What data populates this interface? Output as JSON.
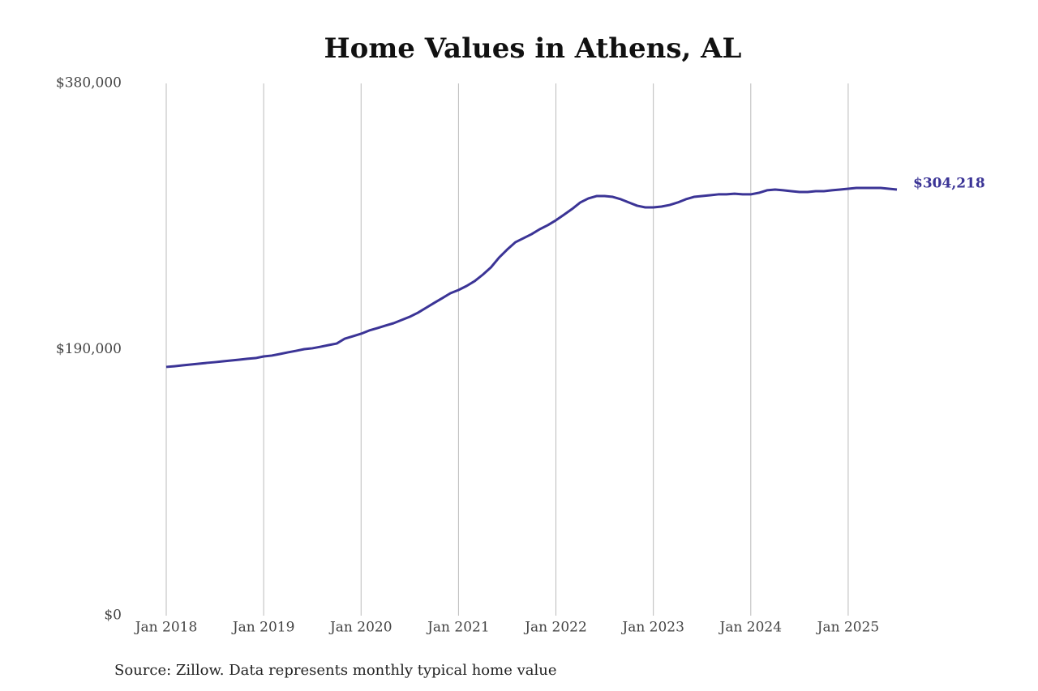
{
  "chart_data": {
    "type": "line",
    "title": "Home Values in Athens, AL",
    "source": "Source: Zillow. Data represents monthly typical home value",
    "x": [
      "2018-01",
      "2018-02",
      "2018-03",
      "2018-04",
      "2018-05",
      "2018-06",
      "2018-07",
      "2018-08",
      "2018-09",
      "2018-10",
      "2018-11",
      "2018-12",
      "2019-01",
      "2019-02",
      "2019-03",
      "2019-04",
      "2019-05",
      "2019-06",
      "2019-07",
      "2019-08",
      "2019-09",
      "2019-10",
      "2019-11",
      "2019-12",
      "2020-01",
      "2020-02",
      "2020-03",
      "2020-04",
      "2020-05",
      "2020-06",
      "2020-07",
      "2020-08",
      "2020-09",
      "2020-10",
      "2020-11",
      "2020-12",
      "2021-01",
      "2021-02",
      "2021-03",
      "2021-04",
      "2021-05",
      "2021-06",
      "2021-07",
      "2021-08",
      "2021-09",
      "2021-10",
      "2021-11",
      "2021-12",
      "2022-01",
      "2022-02",
      "2022-03",
      "2022-04",
      "2022-05",
      "2022-06",
      "2022-07",
      "2022-08",
      "2022-09",
      "2022-10",
      "2022-11",
      "2022-12",
      "2023-01",
      "2023-02",
      "2023-03",
      "2023-04",
      "2023-05",
      "2023-06",
      "2023-07",
      "2023-08",
      "2023-09",
      "2023-10",
      "2023-11",
      "2023-12",
      "2024-01",
      "2024-02",
      "2024-03",
      "2024-04",
      "2024-05",
      "2024-06",
      "2024-07",
      "2024-08",
      "2024-09",
      "2024-10",
      "2024-11",
      "2024-12",
      "2025-01",
      "2025-02",
      "2025-03",
      "2025-04",
      "2025-05",
      "2025-06",
      "2025-07"
    ],
    "series": [
      {
        "color": "#3b3496",
        "values": [
          177600,
          178100,
          178700,
          179300,
          179900,
          180500,
          181000,
          181600,
          182200,
          182800,
          183400,
          183900,
          185100,
          185700,
          186800,
          188000,
          189100,
          190300,
          190900,
          192000,
          193200,
          194300,
          197800,
          199500,
          201300,
          203600,
          205300,
          207100,
          208800,
          211100,
          213400,
          216300,
          219800,
          223300,
          226700,
          230200,
          232500,
          235400,
          238900,
          243500,
          248700,
          255700,
          261400,
          266600,
          269500,
          272400,
          275900,
          278800,
          282300,
          286300,
          290400,
          295000,
          297900,
          299600,
          299600,
          299000,
          297300,
          295000,
          292700,
          291500,
          291500,
          292100,
          293200,
          295000,
          297300,
          299000,
          299600,
          300200,
          300800,
          300800,
          301300,
          300800,
          300800,
          301900,
          303700,
          304200,
          303700,
          303100,
          302500,
          302500,
          303100,
          303100,
          303700,
          304200,
          304800,
          305400,
          305400,
          305400,
          305400,
          304800,
          304218
        ],
        "value_labels": [
          null,
          null,
          null,
          null,
          null,
          null,
          null,
          null,
          null,
          null,
          null,
          null,
          null,
          null,
          null,
          null,
          null,
          null,
          null,
          null,
          null,
          null,
          null,
          null,
          null,
          null,
          null,
          null,
          null,
          null,
          null,
          null,
          null,
          null,
          null,
          null,
          null,
          null,
          null,
          null,
          null,
          null,
          null,
          null,
          null,
          null,
          null,
          null,
          null,
          null,
          null,
          null,
          null,
          null,
          null,
          null,
          null,
          null,
          null,
          null,
          null,
          null,
          null,
          null,
          null,
          null,
          null,
          null,
          null,
          null,
          null,
          null,
          null,
          null,
          null,
          null,
          null,
          null,
          null,
          null,
          null,
          null,
          null,
          null,
          null,
          null,
          null,
          null,
          null,
          null,
          "$304,218"
        ]
      }
    ],
    "xlim": [
      "2018-01",
      "2025-07"
    ],
    "xticks": [
      {
        "value": "2018-01",
        "label": "Jan 2018"
      },
      {
        "value": "2019-01",
        "label": "Jan 2019"
      },
      {
        "value": "2020-01",
        "label": "Jan 2020"
      },
      {
        "value": "2021-01",
        "label": "Jan 2021"
      },
      {
        "value": "2022-01",
        "label": "Jan 2022"
      },
      {
        "value": "2023-01",
        "label": "Jan 2023"
      },
      {
        "value": "2024-01",
        "label": "Jan 2024"
      },
      {
        "value": "2025-01",
        "label": "Jan 2025"
      }
    ],
    "ylim": [
      0,
      380000
    ],
    "yticks": [
      {
        "value": 0,
        "label": "$0"
      },
      {
        "value": 190000,
        "label": "$190,000"
      },
      {
        "value": 380000,
        "label": "$380,000"
      }
    ],
    "grid": "x"
  }
}
